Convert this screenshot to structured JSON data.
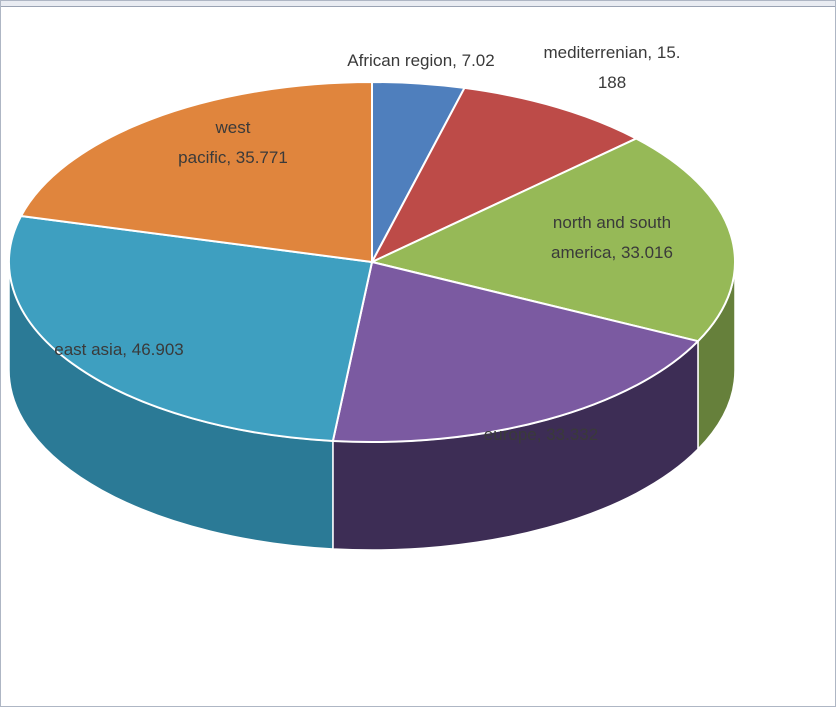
{
  "chart_data": {
    "type": "pie",
    "title": "",
    "slices": [
      {
        "label": "African region",
        "value": 7.02,
        "label_lines": [
          "African region, 7.02"
        ],
        "color": "#4f7fbd",
        "side_color": "#345789"
      },
      {
        "label": "mediterrenian",
        "value": 15.188,
        "label_lines": [
          "mediterrenian, 15.",
          "188"
        ],
        "color": "#bd4b48",
        "side_color": "#803230"
      },
      {
        "label": "north and south america",
        "value": 33.016,
        "label_lines": [
          "north and south",
          "america, 33.016"
        ],
        "color": "#96b957",
        "side_color": "#66803b"
      },
      {
        "label": "europe",
        "value": 33.332,
        "label_lines": [
          "europe, 33.332"
        ],
        "color": "#7b5aa1",
        "side_color": "#3d2d55"
      },
      {
        "label": "east asia",
        "value": 46.903,
        "label_lines": [
          "east asia, 46.903"
        ],
        "color": "#3e9fc0",
        "side_color": "#2b7a96"
      },
      {
        "label": "west pacific",
        "value": 35.771,
        "label_lines": [
          "west",
          "pacific, 35.771"
        ],
        "color": "#e0853d",
        "side_color": "#a85f27"
      }
    ]
  }
}
